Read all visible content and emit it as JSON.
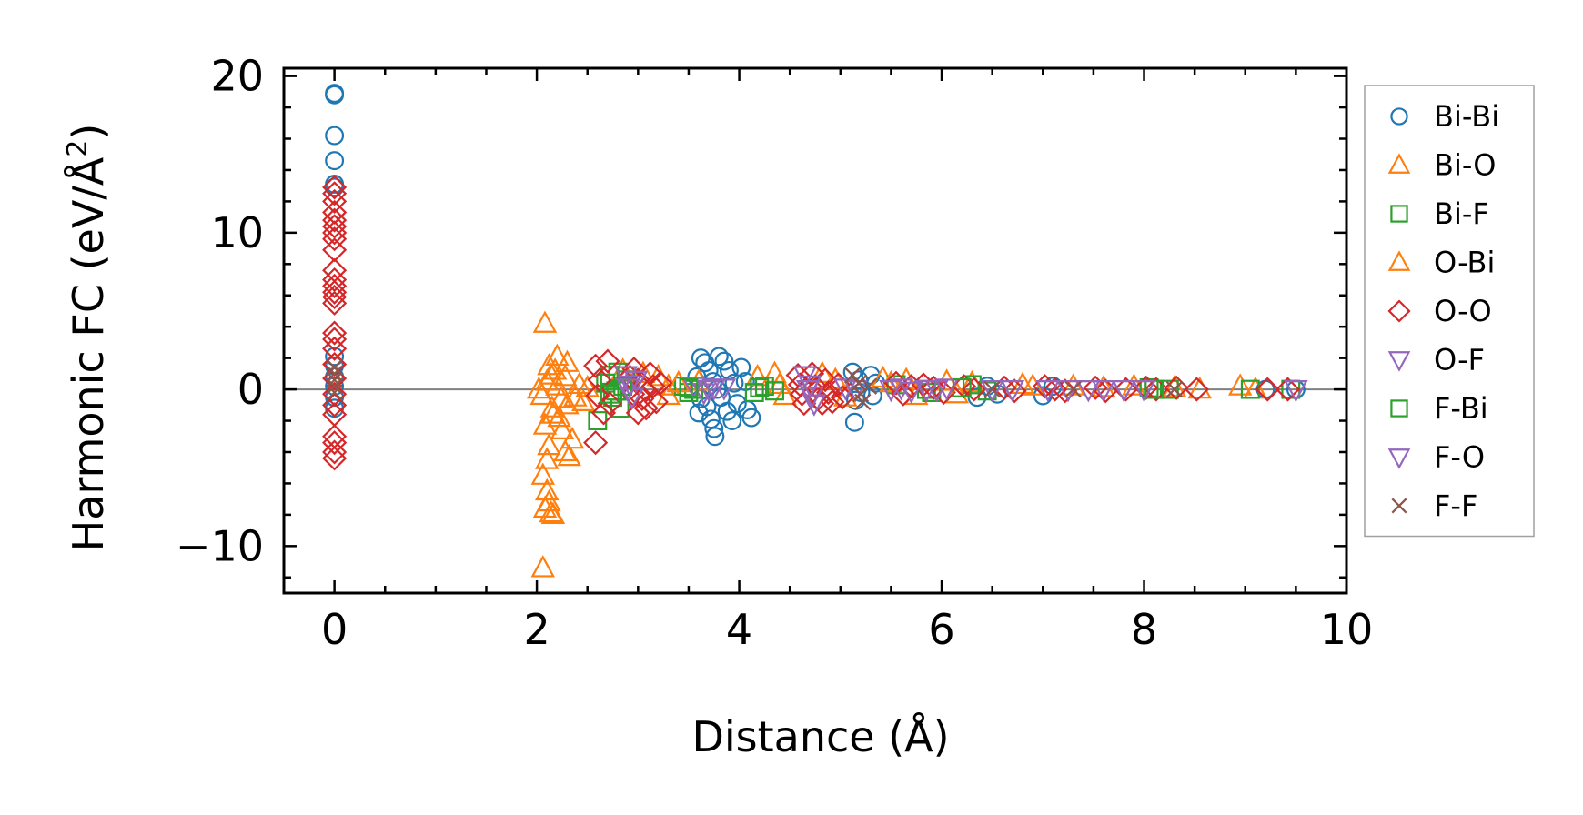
{
  "chart_data": {
    "type": "scatter",
    "xlabel": "Distance (Å)",
    "ylabel": "Harmonic FC (eV/Å",
    "ylabel_sup": "2",
    "ylabel_end": ")",
    "xlim": [
      -0.5,
      10
    ],
    "ylim": [
      -13,
      20.5
    ],
    "x_ticks": [
      0,
      2,
      4,
      6,
      8,
      10
    ],
    "x_tick_labels": [
      "0",
      "2",
      "4",
      "6",
      "8",
      "10"
    ],
    "y_ticks": [
      -10,
      0,
      10,
      20
    ],
    "y_tick_labels": [
      "−10",
      "0",
      "10",
      "20"
    ],
    "x_minor_step": 0.5,
    "y_minor_step": 2,
    "zero_line": true,
    "zero_line_color": "#808080",
    "grid": false,
    "legend_position": "outside-right",
    "series": [
      {
        "name": "Bi-Bi",
        "marker": "circle",
        "color": "#1f77b4",
        "points": [
          [
            0,
            18.9
          ],
          [
            0,
            18.8
          ],
          [
            0,
            16.2
          ],
          [
            0,
            14.6
          ],
          [
            0,
            13.1
          ],
          [
            0,
            12.9
          ],
          [
            0,
            2.1
          ],
          [
            0,
            1.5
          ],
          [
            0,
            0.8
          ],
          [
            0,
            0.2
          ],
          [
            0,
            -0.5
          ],
          [
            0,
            -1.2
          ],
          [
            3.62,
            2.0
          ],
          [
            3.66,
            1.7
          ],
          [
            3.7,
            1.2
          ],
          [
            3.74,
            0.5
          ],
          [
            3.62,
            -0.6
          ],
          [
            3.68,
            -1.1
          ],
          [
            3.72,
            -1.9
          ],
          [
            3.75,
            -2.5
          ],
          [
            3.76,
            -3.0
          ],
          [
            3.8,
            2.1
          ],
          [
            3.85,
            1.8
          ],
          [
            3.9,
            1.2
          ],
          [
            3.95,
            0.4
          ],
          [
            3.82,
            -0.5
          ],
          [
            3.88,
            -1.4
          ],
          [
            3.93,
            -2.0
          ],
          [
            4.02,
            1.4
          ],
          [
            4.06,
            0.5
          ],
          [
            4.08,
            -1.3
          ],
          [
            4.12,
            -1.8
          ],
          [
            3.58,
            0.8
          ],
          [
            3.6,
            -1.5
          ],
          [
            3.78,
            0.0
          ],
          [
            3.98,
            -0.9
          ],
          [
            5.12,
            1.1
          ],
          [
            5.18,
            0.6
          ],
          [
            5.15,
            -0.7
          ],
          [
            5.14,
            -2.1
          ],
          [
            5.2,
            -0.2
          ],
          [
            5.3,
            0.9
          ],
          [
            5.35,
            0.4
          ],
          [
            5.32,
            -0.4
          ],
          [
            6.35,
            -0.5
          ],
          [
            6.45,
            0.2
          ],
          [
            6.55,
            -0.3
          ],
          [
            7.0,
            -0.4
          ],
          [
            7.1,
            0.2
          ],
          [
            9.2,
            0.0
          ],
          [
            9.5,
            0.0
          ]
        ]
      },
      {
        "name": "Bi-O",
        "marker": "triangle",
        "color": "#ff7f0e",
        "points": [
          [
            2.08,
            4.2
          ],
          [
            2.12,
            1.5
          ],
          [
            2.2,
            2.1
          ],
          [
            2.18,
            1.2
          ],
          [
            2.1,
            0.5
          ],
          [
            2.05,
            -0.4
          ],
          [
            2.15,
            -1.2
          ],
          [
            2.08,
            -2.3
          ],
          [
            2.12,
            -3.6
          ],
          [
            2.1,
            -4.5
          ],
          [
            2.06,
            -5.5
          ],
          [
            2.1,
            -6.5
          ],
          [
            2.12,
            -7.2
          ],
          [
            2.08,
            -7.6
          ],
          [
            2.14,
            -7.9
          ],
          [
            2.16,
            -8.0
          ],
          [
            2.06,
            -11.4
          ],
          [
            2.22,
            -1.8
          ],
          [
            2.25,
            -2.6
          ],
          [
            2.28,
            -4.0
          ],
          [
            2.32,
            -4.3
          ],
          [
            2.35,
            -3.2
          ],
          [
            2.3,
            -1.0
          ],
          [
            2.28,
            0.8
          ],
          [
            2.3,
            1.7
          ],
          [
            2.38,
            -0.5
          ],
          [
            2.42,
            0.3
          ],
          [
            2.46,
            -0.8
          ],
          [
            2.02,
            0.0
          ],
          [
            2.5,
            0.1
          ],
          [
            2.85,
            1.2
          ],
          [
            3.05,
            1.0
          ],
          [
            3.2,
            0.8
          ],
          [
            3.3,
            0.2
          ],
          [
            3.3,
            -0.4
          ],
          [
            3.6,
            0.5
          ],
          [
            4.18,
            0.8
          ],
          [
            4.35,
            1.0
          ],
          [
            4.4,
            0.3
          ],
          [
            4.45,
            -0.4
          ],
          [
            4.82,
            1.0
          ],
          [
            4.95,
            0.6
          ],
          [
            5.05,
            -0.5
          ],
          [
            5.42,
            0.7
          ],
          [
            5.65,
            0.6
          ],
          [
            5.75,
            -0.4
          ],
          [
            6.05,
            0.5
          ],
          [
            6.15,
            -0.3
          ],
          [
            6.3,
            0.4
          ],
          [
            6.8,
            0.3
          ],
          [
            7.3,
            0.2
          ],
          [
            7.9,
            0.2
          ],
          [
            8.3,
            0.1
          ],
          [
            8.55,
            0.0
          ],
          [
            8.95,
            0.2
          ],
          [
            9.1,
            0.0
          ]
        ]
      },
      {
        "name": "Bi-F",
        "marker": "square",
        "color": "#2ca02c",
        "points": [
          [
            2.6,
            -2.0
          ],
          [
            2.68,
            0.4
          ],
          [
            2.72,
            0.9
          ],
          [
            2.75,
            -0.5
          ],
          [
            2.8,
            1.1
          ],
          [
            2.78,
            -0.1
          ],
          [
            2.82,
            -1.2
          ],
          [
            2.88,
            0.6
          ],
          [
            3.45,
            0.2
          ],
          [
            3.5,
            -0.2
          ],
          [
            3.55,
            0.0
          ],
          [
            4.15,
            -0.2
          ],
          [
            4.25,
            0.2
          ],
          [
            4.35,
            -0.1
          ],
          [
            5.55,
            0.3
          ],
          [
            5.85,
            0.0
          ],
          [
            5.9,
            -0.2
          ],
          [
            6.3,
            0.3
          ],
          [
            6.45,
            -0.1
          ],
          [
            8.05,
            0.1
          ],
          [
            8.25,
            0.0
          ],
          [
            9.05,
            0.0
          ],
          [
            9.45,
            0.0
          ]
        ]
      },
      {
        "name": "O-Bi",
        "marker": "triangle",
        "color": "#ff7f0e",
        "points": [
          [
            2.14,
            0.9
          ],
          [
            2.2,
            0.2
          ],
          [
            2.24,
            -0.6
          ],
          [
            2.16,
            -1.6
          ],
          [
            3.4,
            0.4
          ],
          [
            5.5,
            0.4
          ],
          [
            6.9,
            0.2
          ],
          [
            7.6,
            0.1
          ]
        ]
      },
      {
        "name": "O-O",
        "marker": "diamond",
        "color": "#d62728",
        "points": [
          [
            0,
            12.9
          ],
          [
            0,
            12.5
          ],
          [
            0,
            12.0
          ],
          [
            0,
            11.3
          ],
          [
            0,
            10.8
          ],
          [
            0,
            10.4
          ],
          [
            0,
            10.0
          ],
          [
            0,
            9.6
          ],
          [
            0,
            8.9
          ],
          [
            0,
            7.6
          ],
          [
            0,
            7.0
          ],
          [
            0,
            6.6
          ],
          [
            0,
            6.2
          ],
          [
            0,
            5.9
          ],
          [
            0,
            5.5
          ],
          [
            0,
            3.6
          ],
          [
            0,
            3.2
          ],
          [
            0,
            2.6
          ],
          [
            0,
            1.6
          ],
          [
            0,
            0.7
          ],
          [
            0,
            -0.3
          ],
          [
            0,
            -1.0
          ],
          [
            0,
            -1.6
          ],
          [
            0,
            -3.0
          ],
          [
            0,
            -3.4
          ],
          [
            0,
            -4.0
          ],
          [
            0,
            -4.4
          ],
          [
            2.58,
            1.5
          ],
          [
            2.62,
            0.6
          ],
          [
            2.6,
            -0.4
          ],
          [
            2.66,
            -1.5
          ],
          [
            2.58,
            -3.4
          ],
          [
            2.7,
            1.8
          ],
          [
            2.72,
            -0.9
          ],
          [
            2.92,
            0.8
          ],
          [
            2.96,
            1.3
          ],
          [
            3.0,
            0.6
          ],
          [
            3.04,
            -0.6
          ],
          [
            3.08,
            -1.2
          ],
          [
            3.0,
            -1.5
          ],
          [
            3.12,
            1.0
          ],
          [
            3.15,
            0.2
          ],
          [
            3.18,
            -0.8
          ],
          [
            3.22,
            0.4
          ],
          [
            2.95,
            -0.3
          ],
          [
            3.06,
            0.0
          ],
          [
            4.58,
            0.9
          ],
          [
            4.6,
            0.3
          ],
          [
            4.62,
            -0.3
          ],
          [
            4.64,
            -0.9
          ],
          [
            4.72,
            1.0
          ],
          [
            4.75,
            0.2
          ],
          [
            4.78,
            -0.6
          ],
          [
            4.82,
            -0.9
          ],
          [
            4.85,
            0.6
          ],
          [
            4.88,
            -0.2
          ],
          [
            4.92,
            -0.8
          ],
          [
            4.98,
            0.3
          ],
          [
            5.02,
            -0.5
          ],
          [
            5.55,
            0.4
          ],
          [
            5.62,
            -0.3
          ],
          [
            5.7,
            0.2
          ],
          [
            5.82,
            0.3
          ],
          [
            5.92,
            0.1
          ],
          [
            6.02,
            -0.2
          ],
          [
            6.22,
            0.2
          ],
          [
            6.32,
            0.0
          ],
          [
            6.62,
            0.1
          ],
          [
            6.72,
            -0.1
          ],
          [
            7.02,
            0.2
          ],
          [
            7.12,
            0.0
          ],
          [
            7.22,
            -0.1
          ],
          [
            7.52,
            0.1
          ],
          [
            7.62,
            -0.1
          ],
          [
            7.82,
            0.0
          ],
          [
            8.02,
            0.1
          ],
          [
            8.12,
            0.0
          ],
          [
            8.32,
            0.1
          ],
          [
            8.52,
            0.0
          ],
          [
            9.22,
            0.0
          ],
          [
            9.42,
            0.0
          ]
        ]
      },
      {
        "name": "O-F",
        "marker": "triangle-down",
        "color": "#9467bd",
        "points": [
          [
            2.88,
            0.9
          ],
          [
            2.92,
            0.3
          ],
          [
            2.94,
            -0.5
          ],
          [
            2.98,
            0.6
          ],
          [
            3.55,
            0.2
          ],
          [
            3.65,
            -0.2
          ],
          [
            3.75,
            0.1
          ],
          [
            3.85,
            0.1
          ],
          [
            4.65,
            0.9
          ],
          [
            4.7,
            0.3
          ],
          [
            4.72,
            -0.4
          ],
          [
            4.74,
            -0.9
          ],
          [
            5.05,
            0.1
          ],
          [
            5.15,
            0.0
          ],
          [
            5.5,
            0.0
          ],
          [
            5.6,
            0.1
          ],
          [
            5.7,
            -0.1
          ],
          [
            5.85,
            0.0
          ],
          [
            5.95,
            0.0
          ],
          [
            6.05,
            0.1
          ],
          [
            6.5,
            0.0
          ],
          [
            7.05,
            0.0
          ],
          [
            7.25,
            0.0
          ],
          [
            7.6,
            0.0
          ],
          [
            7.8,
            0.0
          ],
          [
            9.5,
            0.0
          ]
        ]
      },
      {
        "name": "F-Bi",
        "marker": "square",
        "color": "#2ca02c",
        "points": [
          [
            2.72,
            -0.3
          ],
          [
            2.85,
            0.2
          ],
          [
            3.5,
            0.1
          ],
          [
            4.2,
            0.1
          ],
          [
            6.2,
            0.1
          ],
          [
            8.1,
            0.0
          ]
        ]
      },
      {
        "name": "F-O",
        "marker": "triangle-down",
        "color": "#9467bd",
        "points": [
          [
            2.9,
            0.1
          ],
          [
            3.7,
            0.0
          ],
          [
            4.68,
            0.0
          ],
          [
            6.7,
            0.0
          ],
          [
            7.45,
            0.0
          ],
          [
            8.0,
            0.0
          ]
        ]
      },
      {
        "name": "F-F",
        "marker": "x",
        "color": "#8c564b",
        "points": [
          [
            0,
            1.4
          ],
          [
            0,
            1.0
          ],
          [
            0,
            0.6
          ],
          [
            0,
            0.2
          ],
          [
            0,
            -0.2
          ],
          [
            5.12,
            0.9
          ],
          [
            5.18,
            0.4
          ],
          [
            5.2,
            -0.3
          ],
          [
            5.22,
            -0.8
          ],
          [
            5.28,
            0.2
          ],
          [
            6.5,
            0.0
          ],
          [
            7.3,
            0.0
          ],
          [
            8.3,
            0.0
          ]
        ]
      }
    ]
  }
}
